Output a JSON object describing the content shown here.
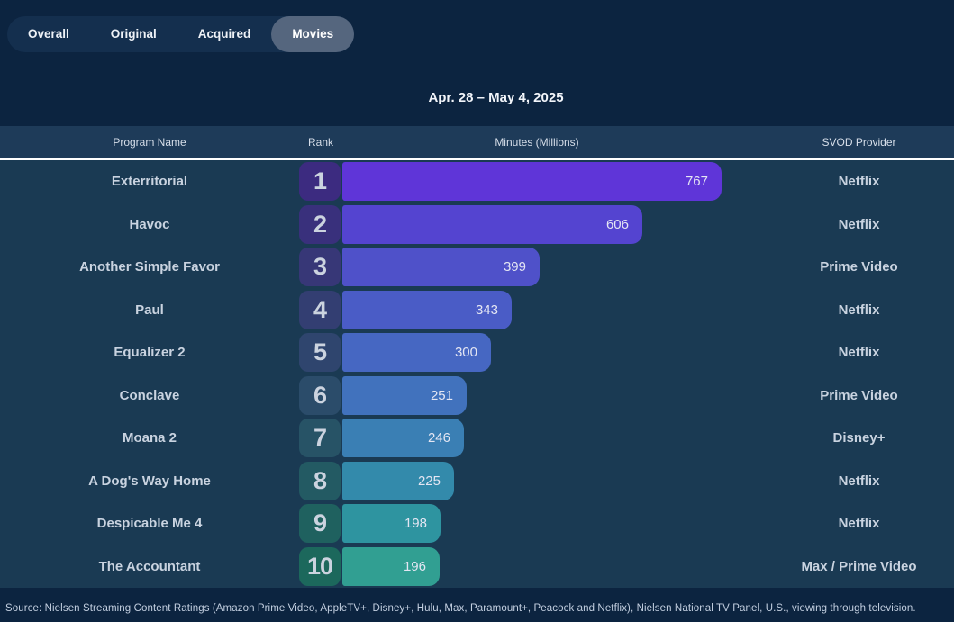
{
  "tabs": {
    "items": [
      {
        "label": "Overall",
        "selected": false
      },
      {
        "label": "Original",
        "selected": false
      },
      {
        "label": "Acquired",
        "selected": false
      },
      {
        "label": "Movies",
        "selected": true
      }
    ]
  },
  "date_range": "Apr. 28 – May 4, 2025",
  "table": {
    "columns": [
      "Program Name",
      "Rank",
      "Minutes (Millions)",
      "SVOD Provider"
    ],
    "rows": [
      {
        "rank": 1,
        "program": "Exterritorial",
        "minutes": 767,
        "provider": "Netflix",
        "bar_color": "#5f35d8",
        "badge_color": "#3c2b80"
      },
      {
        "rank": 2,
        "program": "Havoc",
        "minutes": 606,
        "provider": "Netflix",
        "bar_color": "#5444d0",
        "badge_color": "#39307c"
      },
      {
        "rank": 3,
        "program": "Another Simple Favor",
        "minutes": 399,
        "provider": "Prime Video",
        "bar_color": "#4f51c9",
        "badge_color": "#373777"
      },
      {
        "rank": 4,
        "program": "Paul",
        "minutes": 343,
        "provider": "Netflix",
        "bar_color": "#4a5cc6",
        "badge_color": "#333e72"
      },
      {
        "rank": 5,
        "program": "Equalizer 2",
        "minutes": 300,
        "provider": "Netflix",
        "bar_color": "#4667c2",
        "badge_color": "#2f456e"
      },
      {
        "rank": 6,
        "program": "Conclave",
        "minutes": 251,
        "provider": "Prime Video",
        "bar_color": "#4172bd",
        "badge_color": "#2b4c6a"
      },
      {
        "rank": 7,
        "program": "Moana 2",
        "minutes": 246,
        "provider": "Disney+",
        "bar_color": "#3a7fb4",
        "badge_color": "#275366"
      },
      {
        "rank": 8,
        "program": "A Dog's Way Home",
        "minutes": 225,
        "provider": "Netflix",
        "bar_color": "#338aab",
        "badge_color": "#235a63"
      },
      {
        "rank": 9,
        "program": "Despicable Me 4",
        "minutes": 198,
        "provider": "Netflix",
        "bar_color": "#2e94a0",
        "badge_color": "#1f615f"
      },
      {
        "rank": 10,
        "program": "The Accountant",
        "minutes": 196,
        "provider": "Max / Prime Video",
        "bar_color": "#319f92",
        "badge_color": "#1c685c"
      }
    ]
  },
  "chart_data": {
    "type": "bar",
    "orientation": "horizontal",
    "title": "Apr. 28 – May 4, 2025",
    "value_label": "Minutes (Millions)",
    "categories": [
      "Exterritorial",
      "Havoc",
      "Another Simple Favor",
      "Paul",
      "Equalizer 2",
      "Conclave",
      "Moana 2",
      "A Dog's Way Home",
      "Despicable Me 4",
      "The Accountant"
    ],
    "values": [
      767,
      606,
      399,
      343,
      300,
      251,
      246,
      225,
      198,
      196
    ],
    "ranks": [
      1,
      2,
      3,
      4,
      5,
      6,
      7,
      8,
      9,
      10
    ],
    "providers": [
      "Netflix",
      "Netflix",
      "Prime Video",
      "Netflix",
      "Netflix",
      "Prime Video",
      "Disney+",
      "Netflix",
      "Netflix",
      "Max / Prime Video"
    ],
    "xlim": [
      0,
      767
    ],
    "grid": false,
    "legend": false,
    "data_labels": "inside-bar-right",
    "color_gradient": [
      "#5f35d8",
      "#319f92"
    ]
  },
  "footer": {
    "source": "Source: Nielsen Streaming Content Ratings (Amazon Prime Video, AppleTV+, Disney+, Hulu, Max, Paramount+, Peacock and Netflix), Nielsen National TV Panel, U.S., viewing through television."
  },
  "colors": {
    "page_bg": "#0c2440",
    "tab_bar_bg": "#142f4e",
    "tab_selected_bg": "#55667e",
    "table_header_bg": "#1e3b59",
    "table_body_bg": "#1a3a53",
    "header_divider": "#ffffff",
    "text_light": "#c9d3e0"
  }
}
